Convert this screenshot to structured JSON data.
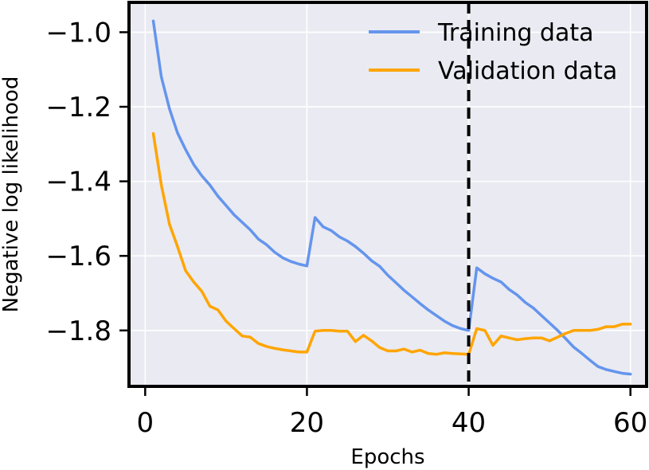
{
  "chart_data": {
    "type": "line",
    "title": "",
    "xlabel": "Epochs",
    "ylabel": "Negative log likelihood",
    "xlim": [
      -2,
      62
    ],
    "ylim": [
      -1.95,
      -0.92
    ],
    "xticks": [
      0,
      20,
      40,
      60
    ],
    "xtick_labels": [
      "0",
      "20",
      "40",
      "60"
    ],
    "yticks": [
      -1.0,
      -1.2,
      -1.4,
      -1.6,
      -1.8
    ],
    "ytick_labels": [
      "−1.0",
      "−1.2",
      "−1.4",
      "−1.6",
      "−1.8"
    ],
    "grid": true,
    "legend_position": "top-right",
    "vline": {
      "x": 40,
      "style": "dashed",
      "color": "#000000"
    },
    "series": [
      {
        "name": "Training data",
        "color": "#6495ED",
        "x": [
          1,
          2,
          3,
          4,
          5,
          6,
          7,
          8,
          9,
          10,
          11,
          12,
          13,
          14,
          15,
          16,
          17,
          18,
          19,
          20,
          21,
          22,
          23,
          24,
          25,
          26,
          27,
          28,
          29,
          30,
          31,
          32,
          33,
          34,
          35,
          36,
          37,
          38,
          39,
          40,
          41,
          42,
          43,
          44,
          45,
          46,
          47,
          48,
          49,
          50,
          51,
          52,
          53,
          54,
          55,
          56,
          57,
          58,
          59,
          60
        ],
        "values": [
          -0.97,
          -1.12,
          -1.205,
          -1.27,
          -1.315,
          -1.355,
          -1.385,
          -1.41,
          -1.44,
          -1.465,
          -1.49,
          -1.51,
          -1.53,
          -1.555,
          -1.57,
          -1.59,
          -1.605,
          -1.615,
          -1.622,
          -1.627,
          -1.497,
          -1.522,
          -1.532,
          -1.549,
          -1.56,
          -1.575,
          -1.593,
          -1.613,
          -1.628,
          -1.652,
          -1.672,
          -1.692,
          -1.71,
          -1.728,
          -1.745,
          -1.76,
          -1.775,
          -1.787,
          -1.795,
          -1.8,
          -1.632,
          -1.648,
          -1.66,
          -1.67,
          -1.69,
          -1.705,
          -1.725,
          -1.74,
          -1.76,
          -1.78,
          -1.8,
          -1.822,
          -1.845,
          -1.862,
          -1.88,
          -1.897,
          -1.905,
          -1.91,
          -1.915,
          -1.917
        ]
      },
      {
        "name": "Validation data",
        "color": "#FFA500",
        "x": [
          1,
          2,
          3,
          4,
          5,
          6,
          7,
          8,
          9,
          10,
          11,
          12,
          13,
          14,
          15,
          16,
          17,
          18,
          19,
          20,
          21,
          22,
          23,
          24,
          25,
          26,
          27,
          28,
          29,
          30,
          31,
          32,
          33,
          34,
          35,
          36,
          37,
          38,
          39,
          40,
          41,
          42,
          43,
          44,
          45,
          46,
          47,
          48,
          49,
          50,
          51,
          52,
          53,
          54,
          55,
          56,
          57,
          58,
          59,
          60
        ],
        "values": [
          -1.272,
          -1.41,
          -1.515,
          -1.575,
          -1.64,
          -1.67,
          -1.695,
          -1.735,
          -1.745,
          -1.775,
          -1.795,
          -1.815,
          -1.818,
          -1.835,
          -1.843,
          -1.848,
          -1.852,
          -1.855,
          -1.858,
          -1.858,
          -1.802,
          -1.8,
          -1.8,
          -1.802,
          -1.802,
          -1.83,
          -1.813,
          -1.828,
          -1.846,
          -1.855,
          -1.855,
          -1.85,
          -1.858,
          -1.853,
          -1.862,
          -1.864,
          -1.86,
          -1.862,
          -1.863,
          -1.864,
          -1.795,
          -1.8,
          -1.84,
          -1.815,
          -1.82,
          -1.825,
          -1.822,
          -1.82,
          -1.82,
          -1.828,
          -1.818,
          -1.808,
          -1.8,
          -1.8,
          -1.8,
          -1.797,
          -1.79,
          -1.79,
          -1.783,
          -1.783
        ]
      }
    ]
  }
}
